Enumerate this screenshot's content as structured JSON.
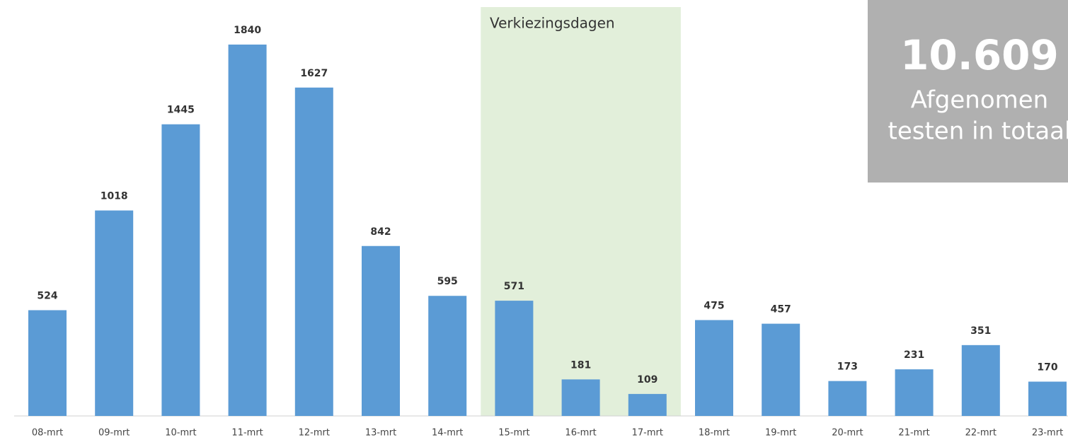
{
  "chart_data": {
    "type": "bar",
    "categories": [
      "08-mrt",
      "09-mrt",
      "10-mrt",
      "11-mrt",
      "12-mrt",
      "13-mrt",
      "14-mrt",
      "15-mrt",
      "16-mrt",
      "17-mrt",
      "18-mrt",
      "19-mrt",
      "20-mrt",
      "21-mrt",
      "22-mrt",
      "23-mrt"
    ],
    "values": [
      524,
      1018,
      1445,
      1840,
      1627,
      842,
      595,
      571,
      181,
      109,
      475,
      457,
      173,
      231,
      351,
      170
    ],
    "color": "#5b9bd5",
    "highlight": {
      "label": "Verkiezingsdagen",
      "from": "15-mrt",
      "to": "17-mrt",
      "color": "#e2efda"
    },
    "total": {
      "label": "10.609",
      "caption": [
        "Afgenomen",
        "testen in totaal"
      ],
      "color": "#b0b0b0"
    }
  }
}
